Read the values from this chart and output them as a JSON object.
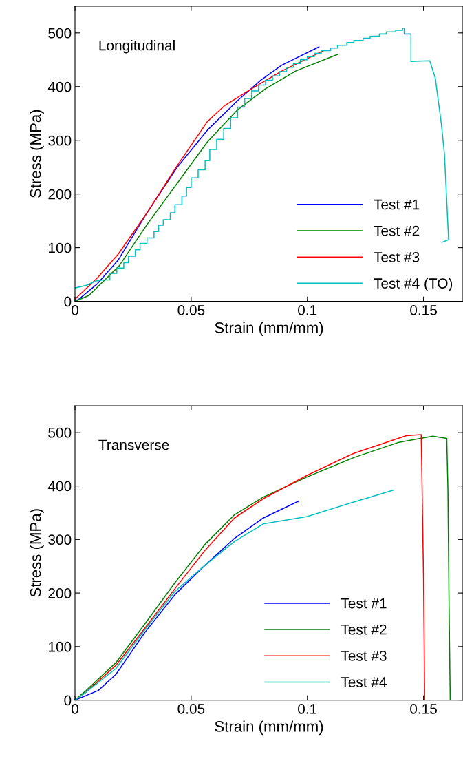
{
  "chart_data": [
    {
      "type": "line",
      "xlabel": "Strain (mm/mm)",
      "ylabel": "Stress (MPa)",
      "annotations": [
        "Longitudinal"
      ],
      "xlim": [
        0,
        0.167
      ],
      "ylim": [
        0,
        550
      ],
      "xticks": [
        0,
        0.05,
        0.1,
        0.15
      ],
      "yticks": [
        0,
        100,
        200,
        300,
        400,
        500
      ],
      "grid": false,
      "legend": "bottom right",
      "series": [
        {
          "name": "Test #1",
          "color": "#0000ff",
          "x": [
            0,
            0.002,
            0.0097,
            0.0186,
            0.031,
            0.044,
            0.057,
            0.07,
            0.08,
            0.089,
            0.105
          ],
          "values": [
            0,
            5,
            33,
            77,
            165,
            250,
            319,
            374,
            412,
            440,
            474
          ]
        },
        {
          "name": "Test #2",
          "color": "#008000",
          "x": [
            0,
            0.006,
            0.019,
            0.031,
            0.044,
            0.057,
            0.07,
            0.082,
            0.095,
            0.113
          ],
          "values": [
            0,
            11,
            66,
            143,
            220,
            297,
            357,
            396,
            429,
            460
          ]
        },
        {
          "name": "Test #3",
          "color": "#ff0000",
          "x": [
            0,
            0.0097,
            0.0186,
            0.031,
            0.044,
            0.057,
            0.0645,
            0.076,
            0.089,
            0.107
          ],
          "values": [
            4,
            44,
            88,
            165,
            253,
            335,
            365,
            396,
            429,
            467
          ]
        },
        {
          "name": "Test #4 (TO)",
          "color": "#00bfbf",
          "x": [
            0,
            0.005,
            0.009,
            0.012,
            0.015,
            0.015,
            0.018,
            0.018,
            0.021,
            0.021,
            0.023,
            0.023,
            0.026,
            0.026,
            0.028,
            0.028,
            0.031,
            0.031,
            0.034,
            0.034,
            0.036,
            0.036,
            0.038,
            0.038,
            0.041,
            0.041,
            0.043,
            0.043,
            0.046,
            0.046,
            0.048,
            0.048,
            0.05,
            0.05,
            0.053,
            0.053,
            0.056,
            0.056,
            0.058,
            0.058,
            0.061,
            0.061,
            0.064,
            0.064,
            0.067,
            0.067,
            0.07,
            0.07,
            0.073,
            0.073,
            0.076,
            0.076,
            0.079,
            0.079,
            0.082,
            0.082,
            0.085,
            0.085,
            0.088,
            0.088,
            0.091,
            0.091,
            0.094,
            0.094,
            0.097,
            0.097,
            0.1,
            0.1,
            0.103,
            0.103,
            0.106,
            0.106,
            0.11,
            0.11,
            0.113,
            0.113,
            0.117,
            0.117,
            0.12,
            0.12,
            0.124,
            0.124,
            0.127,
            0.127,
            0.131,
            0.131,
            0.134,
            0.134,
            0.138,
            0.138,
            0.141,
            0.141,
            0.1417,
            0.1417,
            0.1446,
            0.1446,
            0.1527,
            0.1551,
            0.1577,
            0.159,
            0.1608,
            0.158
          ],
          "values": [
            25,
            30,
            38,
            40,
            40,
            52,
            52,
            62,
            62,
            72,
            72,
            84,
            84,
            96,
            96,
            108,
            108,
            118,
            118,
            130,
            130,
            142,
            142,
            152,
            152,
            165,
            165,
            180,
            180,
            196,
            196,
            212,
            212,
            230,
            230,
            245,
            245,
            262,
            262,
            283,
            283,
            302,
            302,
            322,
            322,
            342,
            342,
            362,
            362,
            378,
            378,
            392,
            392,
            403,
            403,
            412,
            412,
            420,
            420,
            428,
            428,
            436,
            436,
            443,
            443,
            450,
            450,
            456,
            456,
            462,
            462,
            467,
            467,
            472,
            472,
            477,
            477,
            482,
            482,
            486,
            486,
            490,
            490,
            494,
            494,
            498,
            498,
            502,
            502,
            505,
            505,
            509,
            509,
            498,
            498,
            447,
            448,
            415,
            330,
            275,
            115,
            110
          ]
        }
      ]
    },
    {
      "type": "line",
      "xlabel": "Strain (mm/mm)",
      "ylabel": "Stress (MPa)",
      "annotations": [
        "Transverse"
      ],
      "xlim": [
        0,
        0.167
      ],
      "ylim": [
        0,
        550
      ],
      "xticks": [
        0,
        0.05,
        0.1,
        0.15
      ],
      "yticks": [
        0,
        100,
        200,
        300,
        400,
        500
      ],
      "grid": false,
      "legend": "bottom right",
      "series": [
        {
          "name": "Test #1",
          "color": "#0000ff",
          "x": [
            0,
            0.01,
            0.0176,
            0.03,
            0.043,
            0.056,
            0.0686,
            0.081,
            0.096
          ],
          "values": [
            0,
            18,
            48,
            126,
            197,
            252,
            302,
            340,
            371
          ]
        },
        {
          "name": "Test #2",
          "color": "#008000",
          "x": [
            0,
            0.0048,
            0.0176,
            0.03,
            0.043,
            0.056,
            0.0686,
            0.081,
            0.1,
            0.12,
            0.139,
            0.154,
            0.16,
            0.1605,
            0.161,
            0.1615
          ],
          "values": [
            0,
            18,
            70,
            142,
            219,
            291,
            346,
            379,
            417,
            453,
            481,
            493,
            489,
            395,
            175,
            0
          ]
        },
        {
          "name": "Test #3",
          "color": "#ff0000",
          "x": [
            0,
            0.0048,
            0.0176,
            0.03,
            0.043,
            0.056,
            0.0686,
            0.081,
            0.1,
            0.12,
            0.1426,
            0.149,
            0.1492,
            0.15,
            0.1505
          ],
          "values": [
            0,
            15,
            65,
            134,
            208,
            280,
            340,
            376,
            420,
            461,
            494,
            496,
            450,
            230,
            0
          ]
        },
        {
          "name": "Test #4",
          "color": "#00bfbf",
          "x": [
            0,
            0.0048,
            0.0176,
            0.03,
            0.043,
            0.056,
            0.0686,
            0.081,
            0.1,
            0.12,
            0.137
          ],
          "values": [
            0,
            15,
            59,
            131,
            203,
            252,
            296,
            329,
            343,
            370,
            392
          ]
        }
      ]
    }
  ]
}
